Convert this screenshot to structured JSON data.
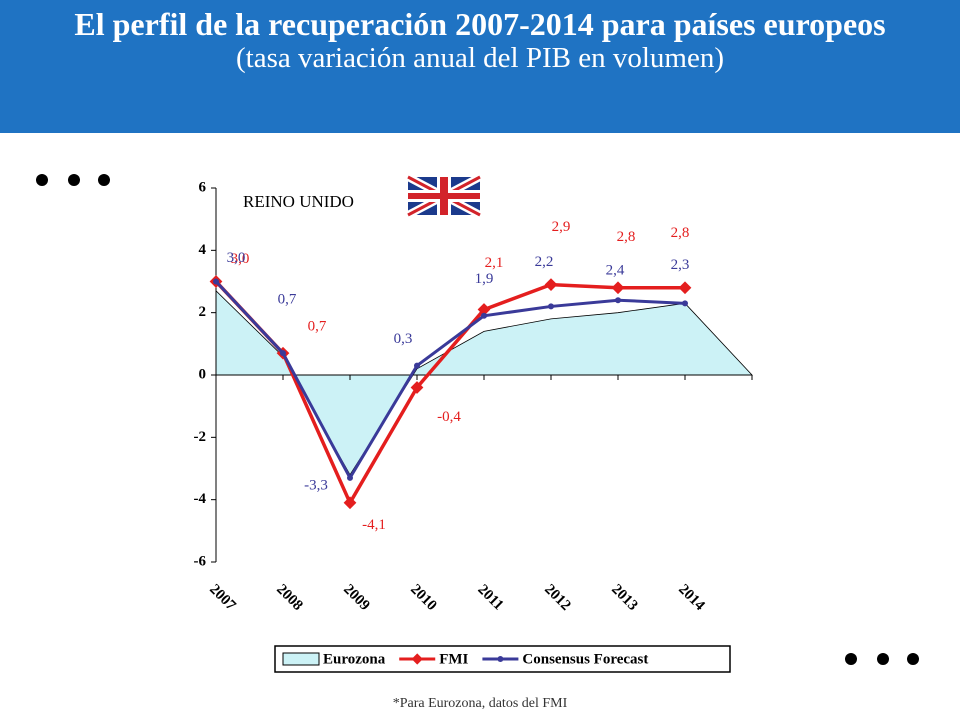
{
  "chart_data": {
    "type": "line",
    "title": "El perfil de la recuperación 2007-2014 para países europeos",
    "subtitle": "(tasa variación anual del PIB en volumen)",
    "annotation": "REINO UNIDO",
    "footnote": "*Para Eurozona, datos del FMI",
    "categories": [
      "2007",
      "2008",
      "2009",
      "2010",
      "2011",
      "2012",
      "2013",
      "2014",
      null
    ],
    "series": [
      {
        "name": "Eurozona",
        "kind": "area",
        "color": "#ccf2f6",
        "values": [
          2.7,
          0.6,
          -3.2,
          0.2,
          1.4,
          1.8,
          2.0,
          2.3,
          0
        ]
      },
      {
        "name": "FMI",
        "kind": "line",
        "color": "#e41e1e",
        "values": [
          3.0,
          0.7,
          -4.1,
          -0.4,
          2.1,
          2.9,
          2.8,
          2.8,
          null
        ],
        "value_labels": [
          "3,0",
          "0,7",
          "-4,1",
          "-0,4",
          "2,1",
          "2,9",
          "2,8",
          "2,8",
          null
        ]
      },
      {
        "name": "Consensus Forecast",
        "kind": "line",
        "color": "#3a3a99",
        "values": [
          3.0,
          0.7,
          -3.3,
          0.3,
          1.9,
          2.2,
          2.4,
          2.3,
          null
        ],
        "value_labels": [
          "3,0",
          "0,7",
          "-3,3",
          "0,3",
          "1,9",
          "2,2",
          "2,4",
          "2,3",
          null
        ]
      }
    ],
    "ylim": [
      -6,
      6
    ],
    "yticks": [
      -6,
      -4,
      -2,
      0,
      2,
      4,
      6
    ]
  }
}
